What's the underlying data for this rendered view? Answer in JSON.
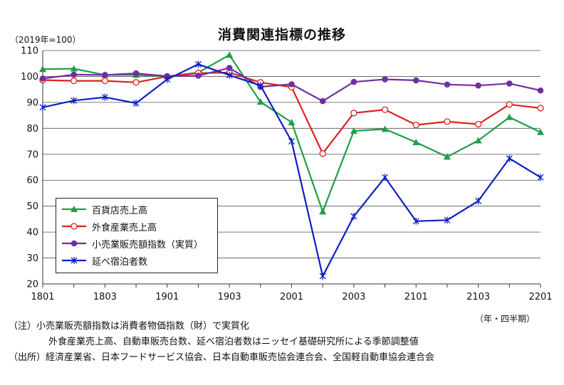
{
  "title": "消費関連指標の推移",
  "y_unit": "（2019年=100）",
  "x_unit": "（年・四半期）",
  "notes": {
    "note1": "（注）小売業販売額指数は消費者物価指数（財）で実質化",
    "note2": "外食産業売上高、自動車販売台数、延べ宿泊者数はニッセイ基礎研究所による季節調整値",
    "source": "（出所）経済産業省、日本フードサービス協会、日本自動車販売協会連合会、全国軽自動車協会連合会"
  },
  "chart_data": {
    "type": "line",
    "x_tick_labels": [
      "1801",
      "1803",
      "1901",
      "1903",
      "2001",
      "2003",
      "2101",
      "2103",
      "2201"
    ],
    "x": [
      "1801",
      "1802",
      "1803",
      "1804",
      "1901",
      "1902",
      "1903",
      "1904",
      "2001",
      "2002",
      "2003",
      "2004",
      "2101",
      "2102",
      "2103",
      "2104",
      "2201"
    ],
    "ylim": [
      20,
      110
    ],
    "y_ticks": [
      20,
      30,
      40,
      50,
      60,
      70,
      80,
      90,
      100,
      110
    ],
    "grid": true,
    "legend_position": "bottom-left",
    "series": [
      {
        "name": "百貨店売上高",
        "color": "#1e9e48",
        "marker": "triangle",
        "values": [
          102.8,
          103.0,
          100.6,
          100.6,
          100.0,
          101.5,
          108.3,
          90.2,
          82.3,
          47.9,
          79.0,
          79.7,
          74.6,
          69.0,
          75.3,
          84.3,
          78.5
        ]
      },
      {
        "name": "外食産業売上高",
        "color": "#e02020",
        "marker": "circle-open",
        "values": [
          98.6,
          98.3,
          98.3,
          97.7,
          100.0,
          101.3,
          101.5,
          97.7,
          95.9,
          70.3,
          85.9,
          87.2,
          81.3,
          82.6,
          81.6,
          89.2,
          87.8
        ]
      },
      {
        "name": "小売業販売額指数（実質）",
        "color": "#7030a0",
        "marker": "circle",
        "values": [
          99.2,
          100.7,
          100.6,
          101.2,
          100.1,
          100.3,
          103.3,
          96.0,
          97.0,
          90.5,
          97.9,
          98.9,
          98.5,
          96.9,
          96.5,
          97.3,
          94.6
        ]
      },
      {
        "name": "延べ宿泊者数",
        "color": "#0d1fc4",
        "marker": "asterisk",
        "values": [
          88.1,
          90.7,
          92.0,
          89.7,
          98.9,
          104.7,
          100.5,
          96.5,
          75.0,
          23.0,
          46.1,
          61.1,
          44.2,
          44.6,
          52.0,
          68.4,
          61.1
        ]
      }
    ]
  }
}
